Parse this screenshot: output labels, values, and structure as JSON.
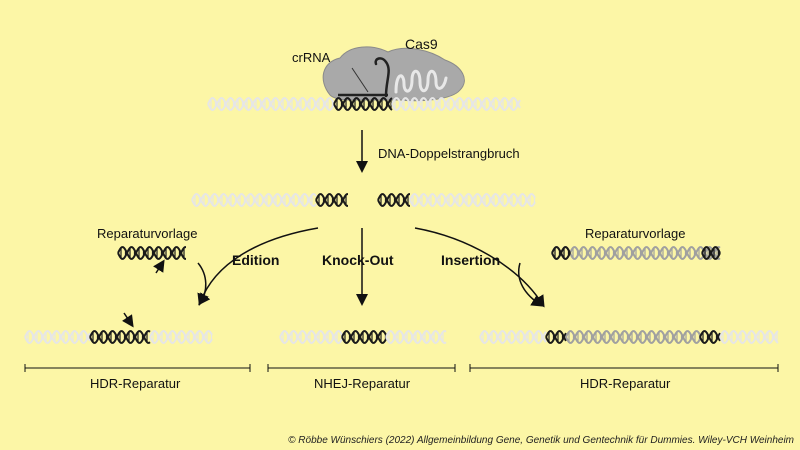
{
  "labels": {
    "cas9": "Cas9",
    "crrna": "crRNA",
    "dsb": "DNA-Doppelstrangbruch",
    "template_left": "Reparaturvorlage",
    "template_right": "Reparaturvorlage",
    "edition": "Edition",
    "knockout": "Knock-Out",
    "insertion": "Insertion",
    "hdr_left": "HDR-Reparatur",
    "nhej": "NHEJ-Reparatur",
    "hdr_right": "HDR-Reparatur"
  },
  "copyright": "© Röbbe Wünschiers (2022) Allgemeinbildung Gene, Genetik und Gentechnik für Dummies. Wiley-VCH Weinheim",
  "colors": {
    "background": "#fcf6a6",
    "dna_light": "#e6e6e6",
    "dna_dark": "#1a1a1a",
    "dna_grey": "#a0a0a0",
    "cas9_body": "#a9a9a9"
  }
}
